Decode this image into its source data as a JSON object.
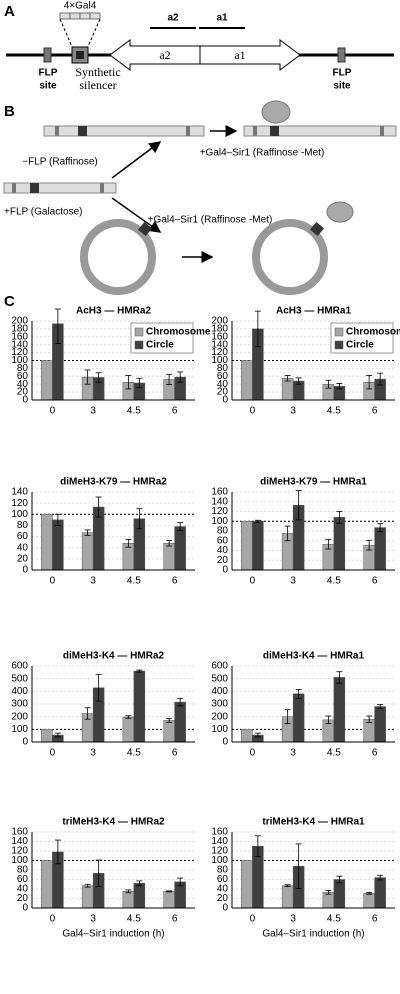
{
  "panel_labels": {
    "a": "A",
    "b": "B",
    "c": "C"
  },
  "diagram_a": {
    "gal4": "4×Gal4",
    "bar_a2": "a2",
    "bar_a1": "a1",
    "arrow_a2": "a2",
    "arrow_a1": "a1",
    "flp_left": [
      "FLP",
      "site"
    ],
    "silencer": [
      "Synthetic",
      "silencer"
    ],
    "flp_right": [
      "FLP",
      "site"
    ]
  },
  "diagram_b": {
    "minus_flp": "−FLP (Raffinose)",
    "plus_flp": "+FLP (Galactose)",
    "gal4_sir1_top": "+Gal4–Sir1 (Raffinose -Met)",
    "gal4_sir1_bottom": "+Gal4–Sir1 (Raffinose -Met)"
  },
  "chart_data": [
    {
      "type": "bar",
      "title": "AcH3 — HMRa2",
      "categories": [
        "0",
        "3",
        "4.5",
        "6"
      ],
      "ylim": [
        0,
        200
      ],
      "yticks": [
        0,
        20,
        40,
        60,
        80,
        100,
        120,
        140,
        160,
        180,
        200
      ],
      "grid": true,
      "reference_line": 100,
      "legend": "upper right",
      "series": [
        {
          "name": "Chromosome",
          "color": "#a6a6a6",
          "values": [
            100,
            58,
            45,
            52
          ],
          "errors": [
            0,
            18,
            17,
            13
          ]
        },
        {
          "name": "Circle",
          "color": "#404040",
          "values": [
            193,
            57,
            43,
            58
          ],
          "errors": [
            50,
            12,
            12,
            13
          ]
        }
      ]
    },
    {
      "type": "bar",
      "title": "AcH3 — HMRa1",
      "categories": [
        "0",
        "3",
        "4.5",
        "6"
      ],
      "ylim": [
        0,
        200
      ],
      "yticks": [
        0,
        20,
        40,
        60,
        80,
        100,
        120,
        140,
        160,
        180,
        200
      ],
      "grid": true,
      "reference_line": 100,
      "legend": "upper right",
      "series": [
        {
          "name": "Chromosome",
          "color": "#a6a6a6",
          "values": [
            100,
            55,
            40,
            45
          ],
          "errors": [
            0,
            7,
            10,
            17
          ]
        },
        {
          "name": "Circle",
          "color": "#404040",
          "values": [
            180,
            48,
            35,
            53
          ],
          "errors": [
            45,
            8,
            7,
            15
          ]
        }
      ]
    },
    {
      "type": "bar",
      "title": "diMeH3-K79 — HMRa2",
      "categories": [
        "0",
        "3",
        "4.5",
        "6"
      ],
      "ylim": [
        0,
        140
      ],
      "yticks": [
        0,
        20,
        40,
        60,
        80,
        100,
        120,
        140
      ],
      "grid": true,
      "reference_line": 100,
      "series": [
        {
          "color": "#a6a6a6",
          "values": [
            100,
            67,
            48,
            48
          ],
          "errors": [
            0,
            5,
            7,
            5
          ]
        },
        {
          "color": "#404040",
          "values": [
            90,
            113,
            92,
            78
          ],
          "errors": [
            10,
            18,
            18,
            7
          ]
        }
      ]
    },
    {
      "type": "bar",
      "title": "diMeH3-K79 — HMRa1",
      "categories": [
        "0",
        "3",
        "4.5",
        "6"
      ],
      "ylim": [
        0,
        160
      ],
      "yticks": [
        0,
        20,
        40,
        60,
        80,
        100,
        120,
        140,
        160
      ],
      "grid": true,
      "reference_line": 100,
      "series": [
        {
          "color": "#a6a6a6",
          "values": [
            100,
            75,
            53,
            51
          ],
          "errors": [
            0,
            15,
            10,
            10
          ]
        },
        {
          "color": "#404040",
          "values": [
            100,
            133,
            108,
            87
          ],
          "errors": [
            2,
            30,
            12,
            8
          ]
        }
      ]
    },
    {
      "type": "bar",
      "title": "diMeH3-K4 — HMRa2",
      "categories": [
        "0",
        "3",
        "4.5",
        "6"
      ],
      "ylim": [
        0,
        600
      ],
      "yticks": [
        0,
        100,
        200,
        300,
        400,
        500,
        600
      ],
      "grid": true,
      "reference_line": 100,
      "series": [
        {
          "color": "#a6a6a6",
          "values": [
            100,
            225,
            197,
            170
          ],
          "errors": [
            0,
            45,
            10,
            15
          ]
        },
        {
          "color": "#404040",
          "values": [
            55,
            428,
            560,
            315
          ],
          "errors": [
            15,
            105,
            8,
            30
          ]
        }
      ]
    },
    {
      "type": "bar",
      "title": "diMeH3-K4 — HMRa1",
      "categories": [
        "0",
        "3",
        "4.5",
        "6"
      ],
      "ylim": [
        0,
        600
      ],
      "yticks": [
        0,
        100,
        200,
        300,
        400,
        500,
        600
      ],
      "grid": true,
      "reference_line": 100,
      "series": [
        {
          "color": "#a6a6a6",
          "values": [
            100,
            200,
            175,
            180
          ],
          "errors": [
            0,
            55,
            30,
            25
          ]
        },
        {
          "color": "#404040",
          "values": [
            55,
            380,
            510,
            280
          ],
          "errors": [
            15,
            35,
            45,
            15
          ]
        }
      ]
    },
    {
      "type": "bar",
      "title": "triMeH3-K4 — HMRa2",
      "categories": [
        "0",
        "3",
        "4.5",
        "6"
      ],
      "ylim": [
        0,
        160
      ],
      "yticks": [
        0,
        20,
        40,
        60,
        80,
        100,
        120,
        140,
        160
      ],
      "grid": true,
      "reference_line": 100,
      "x_label": "Gal4–Sir1 induction (h)",
      "series": [
        {
          "color": "#a6a6a6",
          "values": [
            100,
            47,
            35,
            35
          ],
          "errors": [
            0,
            3,
            3,
            1
          ]
        },
        {
          "color": "#404040",
          "values": [
            118,
            73,
            52,
            55
          ],
          "errors": [
            25,
            28,
            5,
            8
          ]
        }
      ]
    },
    {
      "type": "bar",
      "title": "triMeH3-K4 — HMRa1",
      "categories": [
        "0",
        "3",
        "4.5",
        "6"
      ],
      "ylim": [
        0,
        160
      ],
      "yticks": [
        0,
        20,
        40,
        60,
        80,
        100,
        120,
        140,
        160
      ],
      "grid": true,
      "reference_line": 100,
      "x_label": "Gal4–Sir1 induction (h)",
      "series": [
        {
          "color": "#a6a6a6",
          "values": [
            100,
            47,
            33,
            31
          ],
          "errors": [
            0,
            2,
            4,
            2
          ]
        },
        {
          "color": "#404040",
          "values": [
            130,
            88,
            60,
            64
          ],
          "errors": [
            22,
            47,
            7,
            5
          ]
        }
      ]
    }
  ]
}
